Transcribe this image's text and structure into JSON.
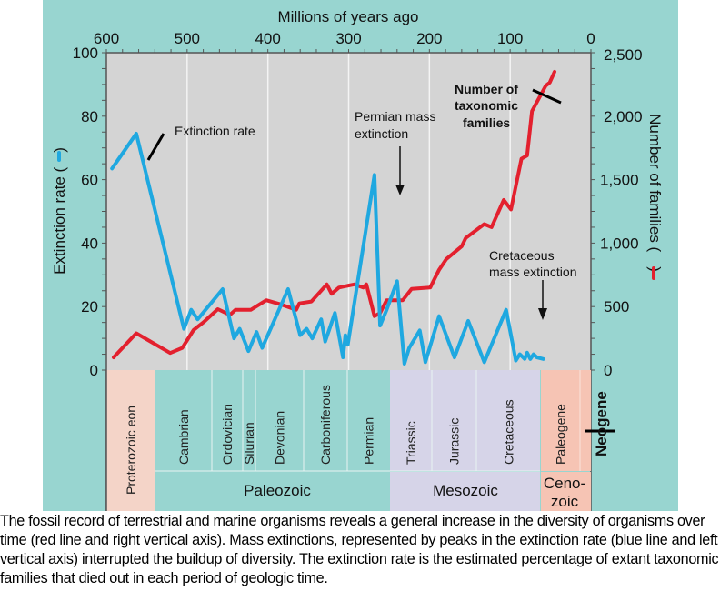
{
  "chart_data": {
    "type": "line",
    "title": "",
    "xlabel": "Millions of years ago",
    "xlim": [
      600,
      0
    ],
    "x_ticks": [
      "600",
      "500",
      "400",
      "300",
      "200",
      "100",
      "0"
    ],
    "y_left": {
      "label": "Extinction rate (",
      "label_end": ")",
      "ylim": [
        0,
        100
      ],
      "ticks": [
        "0",
        "20",
        "40",
        "60",
        "80",
        "100"
      ]
    },
    "y_right": {
      "label": "Number of families (",
      "label_end": ")",
      "ylim": [
        0,
        2500
      ],
      "ticks": [
        "0",
        "500",
        "1,000",
        "1,500",
        "2,000",
        "2,500"
      ]
    },
    "series": [
      {
        "name": "Extinction rate",
        "axis": "left",
        "color": "#1fa8e0",
        "x": [
          593,
          563,
          504,
          495,
          487,
          456,
          442,
          435,
          424,
          414,
          407,
          375,
          360,
          352,
          345,
          334,
          329,
          317,
          307,
          304,
          301,
          268,
          261,
          253,
          240,
          231,
          225,
          212,
          205,
          188,
          169,
          152,
          132,
          105,
          93,
          88,
          82,
          79,
          75,
          71,
          67,
          59
        ],
        "y": [
          63.5,
          74.5,
          13,
          19,
          16,
          25.5,
          10,
          13,
          6,
          12,
          7,
          25.5,
          11,
          13,
          10,
          16,
          9,
          18,
          4,
          11,
          8,
          61.5,
          14,
          19,
          28,
          2,
          7,
          12.5,
          2.5,
          17,
          4,
          15.5,
          2.5,
          19,
          3,
          5,
          3.5,
          5.5,
          3.5,
          5,
          4,
          3.5
        ]
      },
      {
        "name": "Number of taxonomic families",
        "axis": "right",
        "color": "#e3202e",
        "x": [
          591,
          563,
          521,
          506,
          492,
          480,
          462,
          447,
          440,
          421,
          402,
          383,
          365,
          361,
          346,
          327,
          321,
          312,
          293,
          282,
          278,
          268,
          261,
          253,
          233,
          222,
          199,
          188,
          179,
          160,
          155,
          132,
          123,
          108,
          99,
          86,
          79,
          73,
          56,
          51,
          45
        ],
        "y": [
          100,
          290,
          135,
          175,
          315,
          375,
          480,
          435,
          475,
          475,
          550,
          515,
          475,
          525,
          540,
          675,
          600,
          650,
          675,
          650,
          675,
          425,
          450,
          550,
          550,
          640,
          650,
          790,
          875,
          975,
          1040,
          1150,
          1125,
          1340,
          1265,
          1665,
          1690,
          2040,
          2240,
          2265,
          2350
        ]
      }
    ],
    "annotations": {
      "extinction_rate": "Extinction rate",
      "families_line1": "Number of",
      "families_line2": "taxonomic",
      "families_line3": "families",
      "permian_line1": "Permian mass",
      "permian_line2": "extinction",
      "cretaceous_line1": "Cretaceous",
      "cretaceous_line2": "mass extinction"
    },
    "timescale": {
      "eon": "Proterozoic eon",
      "periods": [
        "Cambrian",
        "Ordovician",
        "Silurian",
        "Devonian",
        "Carboniferous",
        "Permian",
        "Triassic",
        "Jurassic",
        "Cretaceous",
        "Paleogene"
      ],
      "neogene": "Neogene",
      "eras": [
        "Paleozoic",
        "Mesozoic"
      ],
      "cenozoic_line1": "Ceno-",
      "cenozoic_line2": "zoic"
    },
    "grid": true
  },
  "colors": {
    "panel": "#98d5d0",
    "plot_bg": "#d4d4d4",
    "proterozoic": "#f4d4c8",
    "paleozoic": "#98d5d0",
    "mesozoic": "#d6d4e8",
    "cenozoic": "#f6c4b4"
  },
  "caption": "The fossil record of terrestrial and marine organisms reveals a general increase in the diversity of organisms over time (red line and right vertical axis). Mass extinctions, represented by peaks in the extinction rate (blue line and left vertical axis) interrupted the buildup of diversity. The extinction rate is the estimated percentage of extant taxonomic families that died out in each period of geologic time."
}
